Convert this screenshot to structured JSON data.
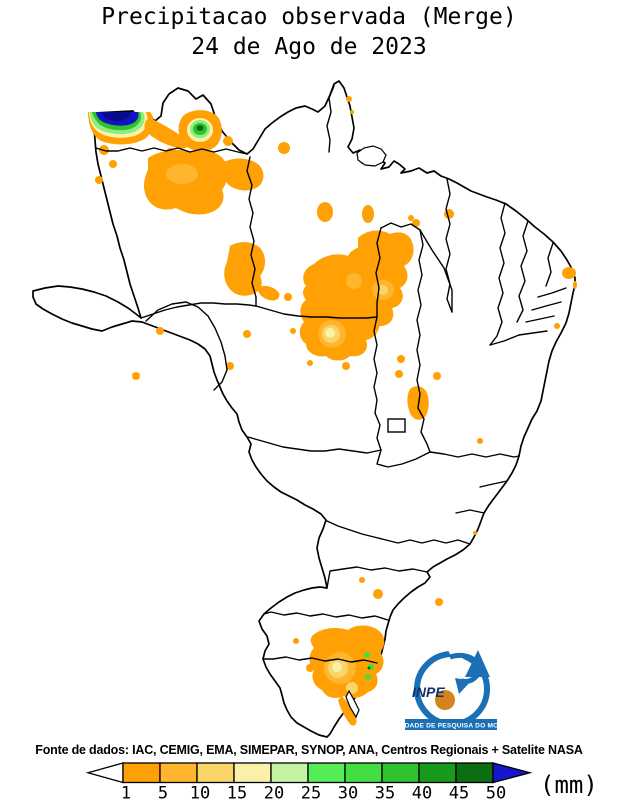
{
  "title": {
    "line1": "Precipitacao observada (Merge)",
    "line2": "24 de Ago de 2023"
  },
  "footer": {
    "source_text": "Fonte de dados: IAC, CEMIG, EMA, SIMEPAR, SYNOP, ANA, Centros Regionais + Satelite NASA"
  },
  "colorbar": {
    "unit_label": "(mm)",
    "tick_labels": [
      "1",
      "5",
      "10",
      "15",
      "20",
      "25",
      "30",
      "35",
      "40",
      "45",
      "50"
    ],
    "tick_values": [
      1,
      5,
      10,
      15,
      20,
      25,
      30,
      35,
      40,
      45,
      50
    ],
    "cell_colors": [
      "#FFA005",
      "#FFB52E",
      "#F9D467",
      "#FAF0A8",
      "#C5F3A4",
      "#55EC55",
      "#44DD44",
      "#2EC32E",
      "#189A1C",
      "#0C6E10"
    ],
    "below_min_color": "#FFFFFF",
    "above_max_color": "#1616CC"
  },
  "map": {
    "region": "Brazil with state boundaries",
    "precip_palette_meaning": "orange = light rain (1-15mm), yellow/green = moderate (15-40mm), dark green/blue = heavy (40-50+mm)",
    "main_rain_areas": [
      "northwest Amazonas border spot with green/blue core (>50mm)",
      "green-core cell on upper Rio Negro (~200,128)",
      "broad orange field over central/northern Amazonas",
      "orange cluster over north Mato Grosso / south Para with pale-yellow core",
      "orange cluster over Tocantins",
      "small oval on Minas/Bahia border",
      "coastal specks on the Northeast coast",
      "orange field with green specks over coastal Rio Grande do Sul / Santa Catarina"
    ]
  },
  "logo": {
    "acronym": "INPE",
    "banner_text": "UNIDADE DE PESQUISA DO MCTIC",
    "brand_blue": "#1A6FB5",
    "ball_orange": "#D4841C"
  }
}
